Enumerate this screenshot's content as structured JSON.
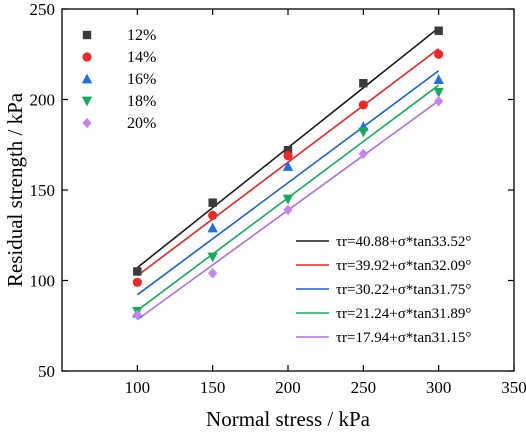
{
  "chart_data": {
    "type": "scatter",
    "xlabel": "Normal stress / kPa",
    "ylabel": "Residual strength / kPa",
    "xlim": [
      50,
      350
    ],
    "ylim": [
      50,
      250
    ],
    "xticks": [
      100,
      150,
      200,
      250,
      300,
      350
    ],
    "yticks": [
      50,
      100,
      150,
      200,
      250
    ],
    "grid": false,
    "legend_position": "top-left",
    "fit_legend_position": "bottom-right",
    "series": [
      {
        "name": "12%",
        "marker": "square",
        "color": "#3a3a3a",
        "x": [
          100,
          150,
          200,
          250,
          300
        ],
        "y": [
          105,
          143,
          172,
          209,
          238
        ],
        "fit": {
          "label": "τr=40.88+σ*tan33.52°",
          "color": "#1a1a1a",
          "intercept": 40.88,
          "angle_deg": 33.52
        }
      },
      {
        "name": "14%",
        "marker": "circle",
        "color": "#f02828",
        "x": [
          100,
          150,
          200,
          250,
          300
        ],
        "y": [
          99,
          136,
          169,
          197,
          225
        ],
        "fit": {
          "label": "τr=39.92+σ*tan32.09°",
          "color": "#f02020",
          "intercept": 39.92,
          "angle_deg": 32.09
        }
      },
      {
        "name": "16%",
        "marker": "triangle-up",
        "color": "#1e6fe8",
        "x": [
          100,
          150,
          200,
          250,
          300
        ],
        "y": [
          82,
          129,
          163,
          185,
          211
        ],
        "fit": {
          "label": "τr=30.22+σ*tan31.75°",
          "color": "#1561d8",
          "intercept": 30.22,
          "angle_deg": 31.75
        }
      },
      {
        "name": "18%",
        "marker": "triangle-down",
        "color": "#12ad5a",
        "x": [
          100,
          150,
          200,
          250,
          300
        ],
        "y": [
          83,
          113,
          145,
          182,
          204
        ],
        "fit": {
          "label": "τr=21.24+σ*tan31.89°",
          "color": "#12ad5a",
          "intercept": 21.24,
          "angle_deg": 31.89
        }
      },
      {
        "name": "20%",
        "marker": "diamond",
        "color": "#c783f0",
        "x": [
          100,
          150,
          200,
          250,
          300
        ],
        "y": [
          81,
          104,
          139,
          170,
          199
        ],
        "fit": {
          "label": "τr=17.94+σ*tan31.15°",
          "color": "#b46be6",
          "intercept": 17.94,
          "angle_deg": 31.15
        }
      }
    ]
  }
}
